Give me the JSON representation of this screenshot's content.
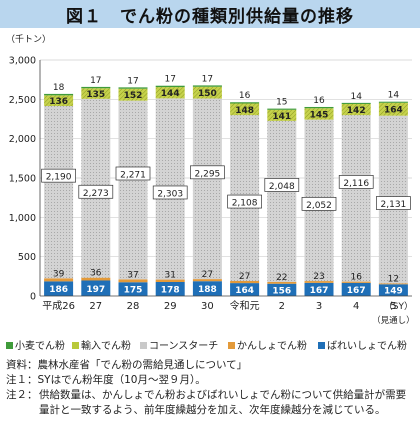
{
  "title": "図１　でん粉の種類別供給量の推移",
  "chart_data": {
    "type": "bar",
    "stacked": true,
    "unit_label": "（千トン）",
    "x_unit_label": "（SY）",
    "categories": [
      "平成26",
      "27",
      "28",
      "29",
      "30",
      "令和元",
      "2",
      "3",
      "4",
      "5"
    ],
    "category_sublabels": [
      "",
      "",
      "",
      "",
      "",
      "",
      "",
      "",
      "",
      "（見通し）"
    ],
    "ylim": [
      0,
      3000
    ],
    "yticks": [
      0,
      500,
      1000,
      1500,
      2000,
      2500,
      3000
    ],
    "ytick_labels": [
      "0",
      "500",
      "1,000",
      "1,500",
      "2,000",
      "2,500",
      "3,000"
    ],
    "series": [
      {
        "name": "ばれいしょでん粉",
        "color": "#1f6fb7",
        "values": [
          186,
          197,
          175,
          178,
          188,
          164,
          156,
          167,
          167,
          149
        ],
        "labels": [
          "186",
          "197",
          "175",
          "178",
          "188",
          "164",
          "156",
          "167",
          "167",
          "149"
        ]
      },
      {
        "name": "かんしょでん粉",
        "color": "#e39a3a",
        "values": [
          39,
          36,
          37,
          31,
          27,
          27,
          22,
          23,
          16,
          12
        ],
        "labels": [
          "39",
          "36",
          "37",
          "31",
          "27",
          "27",
          "22",
          "23",
          "16",
          "12"
        ]
      },
      {
        "name": "コーンスターチ",
        "color": "#c9c9c9",
        "values": [
          2190,
          2273,
          2271,
          2303,
          2295,
          2108,
          2048,
          2052,
          2116,
          2131
        ],
        "labels": [
          "2,190",
          "2,273",
          "2,271",
          "2,303",
          "2,295",
          "2,108",
          "2,048",
          "2,052",
          "2,116",
          "2,131"
        ]
      },
      {
        "name": "輸入でん粉",
        "color": "#b9c93a",
        "values": [
          136,
          135,
          152,
          144,
          150,
          148,
          141,
          145,
          142,
          164
        ],
        "labels": [
          "136",
          "135",
          "152",
          "144",
          "150",
          "148",
          "141",
          "145",
          "142",
          "164"
        ]
      },
      {
        "name": "小麦でん粉",
        "color": "#3f9b3a",
        "values": [
          18,
          17,
          17,
          17,
          17,
          16,
          15,
          16,
          14,
          14
        ],
        "labels": [
          "18",
          "17",
          "17",
          "17",
          "17",
          "16",
          "15",
          "16",
          "14",
          "14"
        ]
      }
    ]
  },
  "legend": [
    {
      "label": "小麦でん粉",
      "color": "#3f9b3a"
    },
    {
      "label": "輸入でん粉",
      "color": "#b9c93a"
    },
    {
      "label": "コーンスターチ",
      "color": "#c9c9c9"
    },
    {
      "label": "かんしょでん粉",
      "color": "#e39a3a"
    },
    {
      "label": "ばれいしょでん粉",
      "color": "#1f6fb7"
    }
  ],
  "notes": {
    "source": "資料：農林水産省「でん粉の需給見通しについて」",
    "note1": "注１：SYはでん粉年度（10月～翌９月）。",
    "note2_head": "注２：",
    "note2_body": "供給数量は、かんしょでん粉およびばれいしょでん粉について供給量計が需要量計と一致するよう、前年度繰越分を加え、次年度繰越分を減じている。"
  }
}
